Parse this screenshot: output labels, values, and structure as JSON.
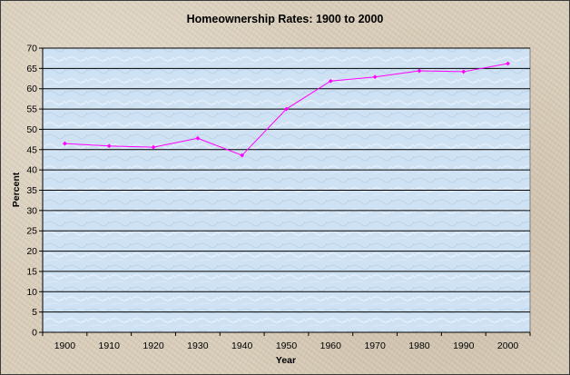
{
  "chart_data": {
    "type": "line",
    "title": "Homeownership Rates:  1900 to 2000",
    "xlabel": "Year",
    "ylabel": "Percent",
    "x": [
      1900,
      1910,
      1920,
      1930,
      1940,
      1950,
      1960,
      1970,
      1980,
      1990,
      2000
    ],
    "series": [
      {
        "values": [
          46.5,
          45.9,
          45.6,
          47.8,
          43.6,
          55.0,
          61.9,
          62.9,
          64.4,
          64.2,
          66.2
        ]
      }
    ],
    "ylim": [
      0,
      70
    ],
    "yticks": [
      "0",
      "5",
      "10",
      "15",
      "20",
      "25",
      "30",
      "35",
      "40",
      "45",
      "50",
      "55",
      "60",
      "65",
      "70"
    ],
    "xticks": [
      "1900",
      "1910",
      "1920",
      "1930",
      "1940",
      "1950",
      "1960",
      "1970",
      "1980",
      "1990",
      "2000"
    ],
    "grid": "horizontal",
    "legend": "none",
    "colors": {
      "line": "#ff00ff",
      "plot_background": "#cfe2f3",
      "gridline": "#000000"
    }
  }
}
